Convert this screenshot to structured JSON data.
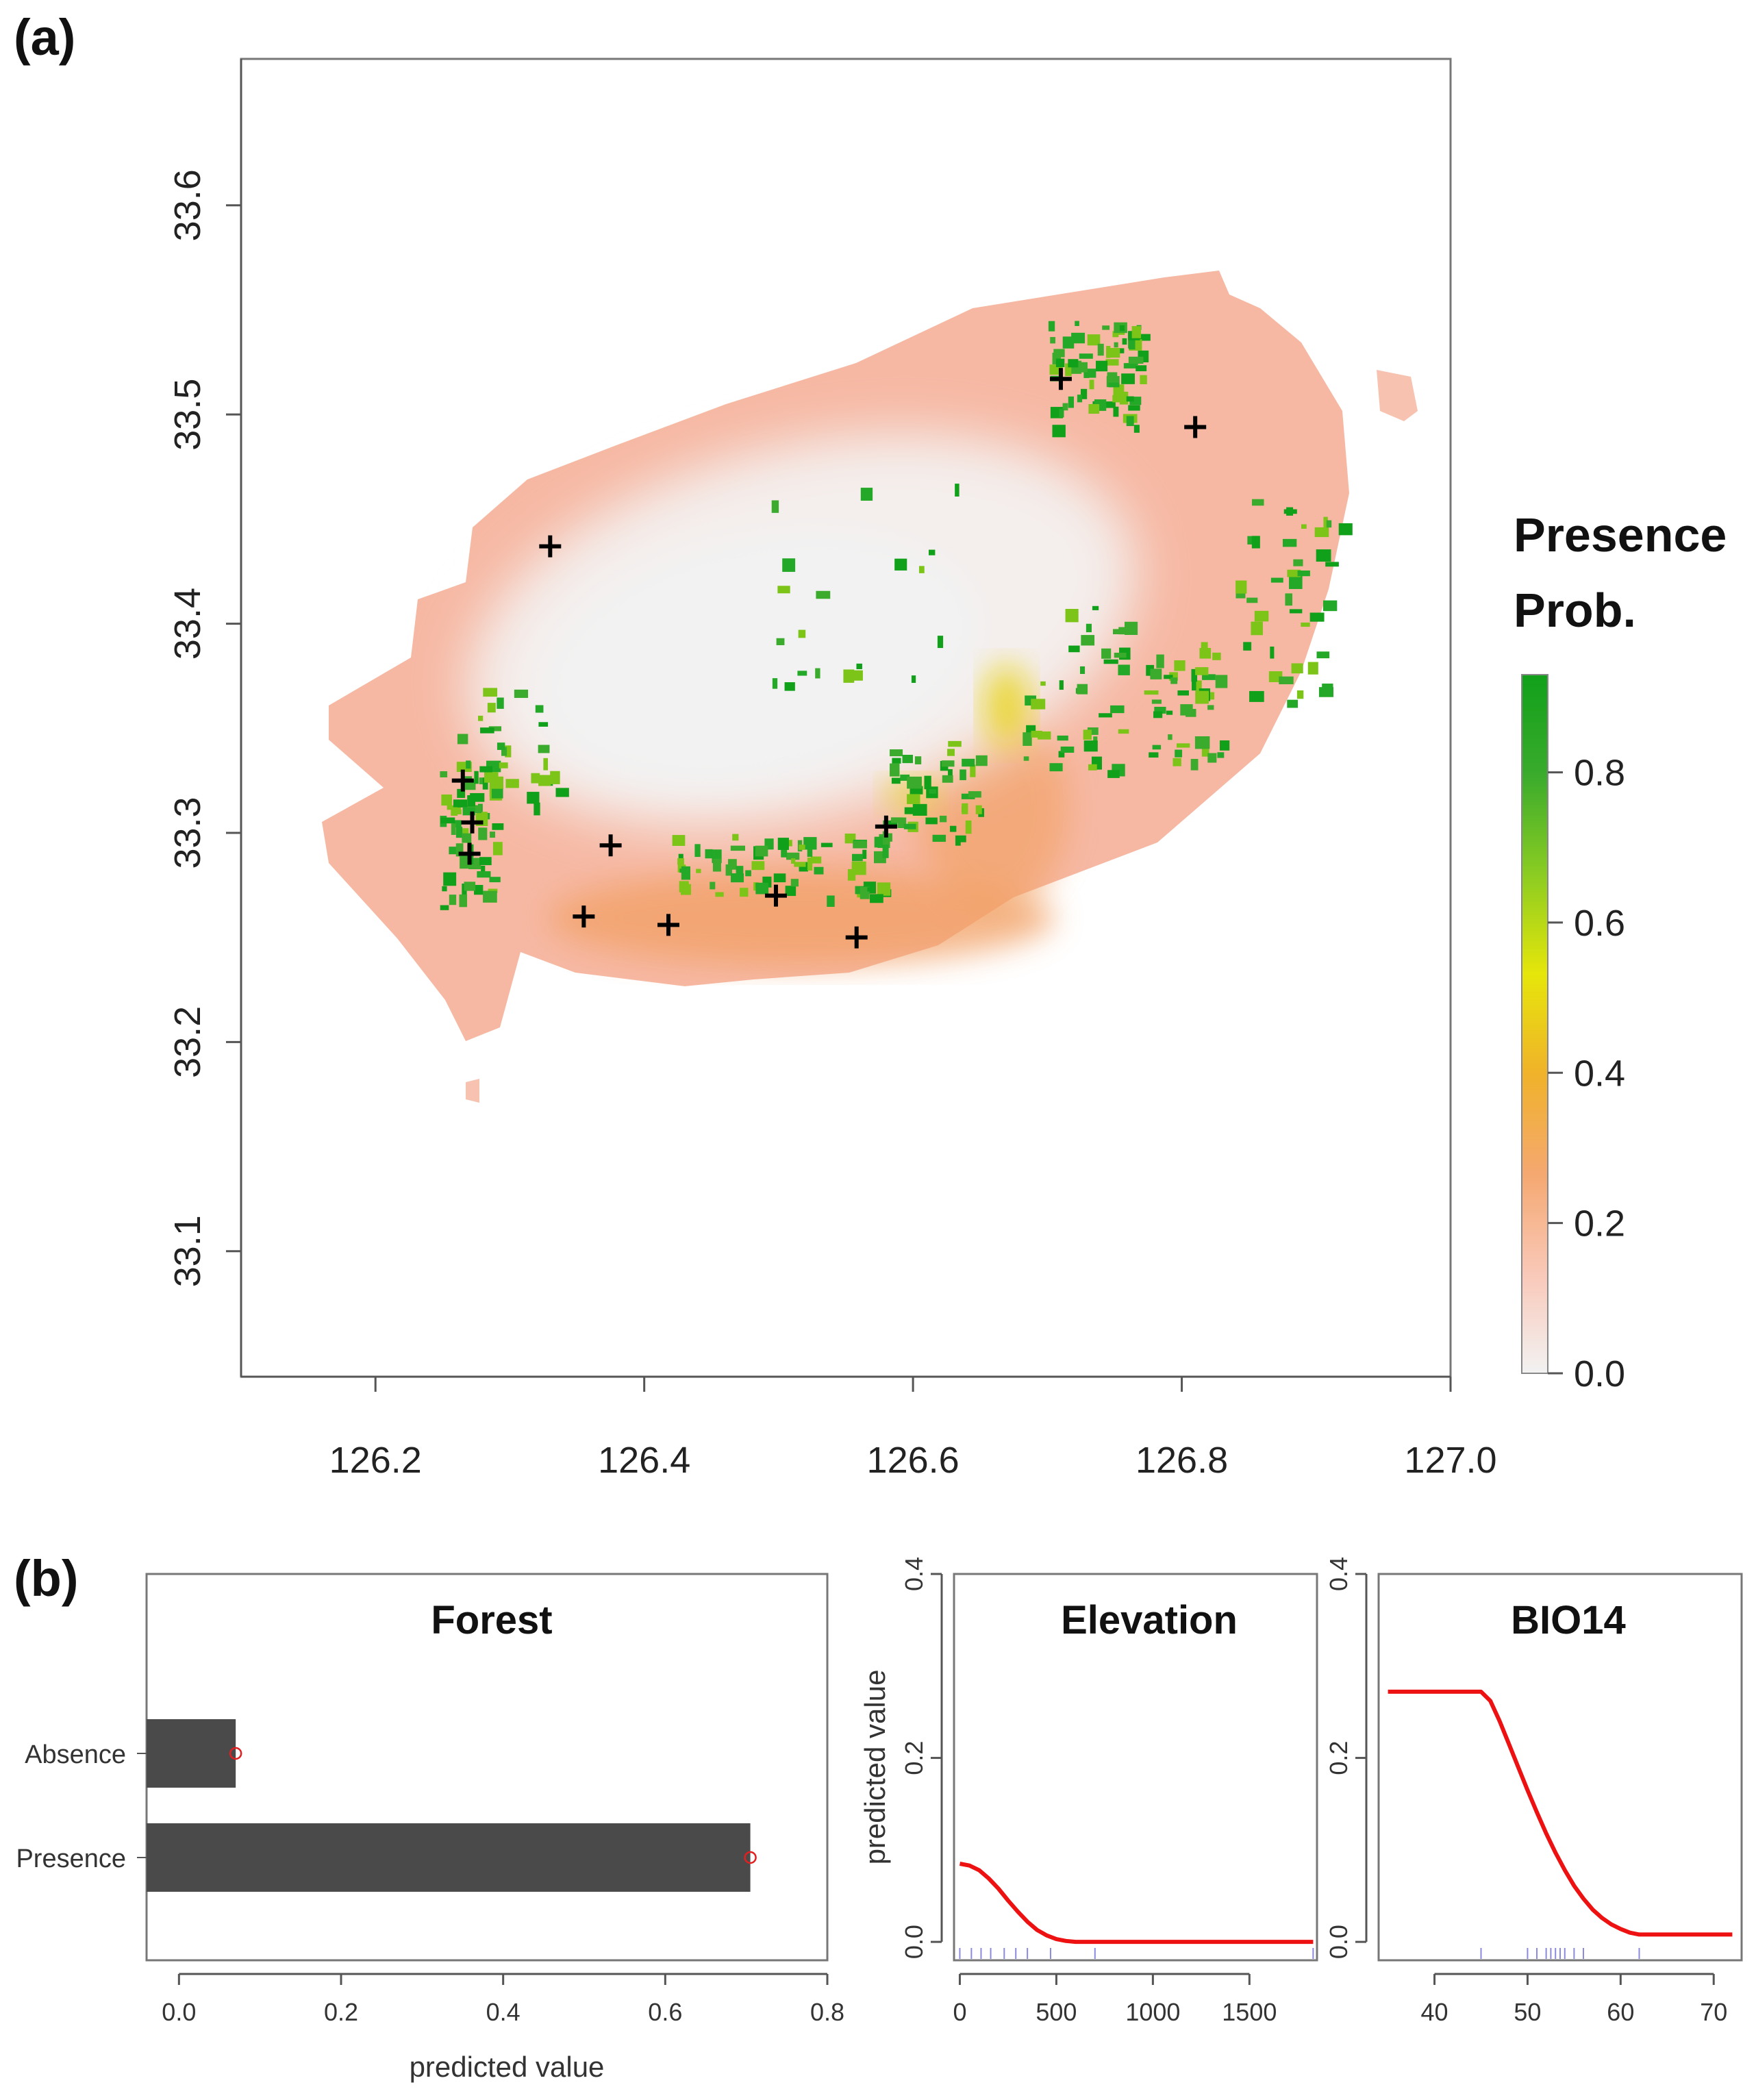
{
  "panel_a": {
    "label": "(a)"
  },
  "panel_b": {
    "label": "(b)"
  },
  "chart_data": [
    {
      "type": "heatmap",
      "subject": "presence probability map",
      "x_ticks": [
        "126.2",
        "126.4",
        "126.6",
        "126.8",
        "127.0"
      ],
      "y_ticks": [
        "33.1",
        "33.2",
        "33.3",
        "33.4",
        "33.5",
        "33.6"
      ],
      "xlim": [
        126.1,
        127.0
      ],
      "ylim": [
        33.04,
        33.67
      ],
      "legend": {
        "title_line1": "Presence",
        "title_line2": "Prob.",
        "ticks": [
          "0.0",
          "0.2",
          "0.4",
          "0.6",
          "0.8"
        ],
        "range": [
          0.0,
          0.93
        ],
        "colors": [
          "#f2f2f2",
          "#f9c8b8",
          "#f5a870",
          "#f0b22a",
          "#e6e60a",
          "#8bcc22",
          "#3aab2c",
          "#11a01a"
        ],
        "placement": "right"
      },
      "points": [
        [
          126.265,
          33.325
        ],
        [
          126.272,
          33.305
        ],
        [
          126.27,
          33.29
        ],
        [
          126.33,
          33.437
        ],
        [
          126.355,
          33.26
        ],
        [
          126.375,
          33.294
        ],
        [
          126.418,
          33.256
        ],
        [
          126.498,
          33.27
        ],
        [
          126.558,
          33.25
        ],
        [
          126.58,
          33.303
        ],
        [
          126.71,
          33.517
        ],
        [
          126.81,
          33.494
        ]
      ]
    },
    {
      "type": "bar",
      "title": "Forest",
      "orientation": "horizontal",
      "categories": [
        "Absence",
        "Presence"
      ],
      "values": [
        0.07,
        0.705
      ],
      "xlabel": "predicted value",
      "x_ticks": [
        "0.0",
        "0.2",
        "0.4",
        "0.6",
        "0.8"
      ],
      "xlim": [
        -0.04,
        0.8
      ],
      "bar_color": "#4a4a4a",
      "marker_color": "#e02020"
    },
    {
      "type": "line",
      "title": "Elevation",
      "ylabel": "predicted value",
      "x_ticks": [
        "0",
        "500",
        "1000",
        "1500"
      ],
      "y_ticks": [
        "0.0",
        "0.2",
        "0.4"
      ],
      "xlim": [
        -30,
        1850
      ],
      "ylim": [
        -0.02,
        0.4
      ],
      "series": [
        {
          "x": [
            0,
            50,
            100,
            150,
            200,
            250,
            300,
            350,
            400,
            450,
            500,
            550,
            600,
            650,
            700,
            800,
            1000,
            1200,
            1400,
            1600,
            1830
          ],
          "y": [
            0.085,
            0.083,
            0.078,
            0.069,
            0.058,
            0.045,
            0.033,
            0.022,
            0.013,
            0.007,
            0.003,
            0.001,
            0.0,
            0.0,
            0.0,
            0.0,
            0.0,
            0.0,
            0.0,
            0.0,
            0.0
          ],
          "color": "#ee1111"
        }
      ],
      "rug": [
        0,
        60,
        110,
        160,
        230,
        290,
        350,
        470,
        700,
        1830
      ]
    },
    {
      "type": "line",
      "title": "BIO14",
      "x_ticks": [
        "40",
        "50",
        "60",
        "70"
      ],
      "y_ticks": [
        "0.0",
        "0.2",
        "0.4"
      ],
      "xlim": [
        34,
        73
      ],
      "ylim": [
        -0.02,
        0.4
      ],
      "series": [
        {
          "x": [
            35,
            38,
            41,
            44,
            45,
            46,
            47,
            48,
            49,
            50,
            51,
            52,
            53,
            54,
            55,
            56,
            57,
            58,
            59,
            60,
            61,
            62,
            65,
            68,
            72
          ],
          "y": [
            0.272,
            0.272,
            0.272,
            0.272,
            0.272,
            0.262,
            0.24,
            0.215,
            0.19,
            0.165,
            0.141,
            0.118,
            0.097,
            0.078,
            0.061,
            0.047,
            0.035,
            0.026,
            0.019,
            0.014,
            0.01,
            0.008,
            0.008,
            0.008,
            0.008
          ],
          "color": "#ee1111"
        }
      ],
      "rug": [
        45,
        50,
        51,
        52,
        52.5,
        53,
        53.5,
        54,
        55,
        56,
        62
      ]
    }
  ]
}
